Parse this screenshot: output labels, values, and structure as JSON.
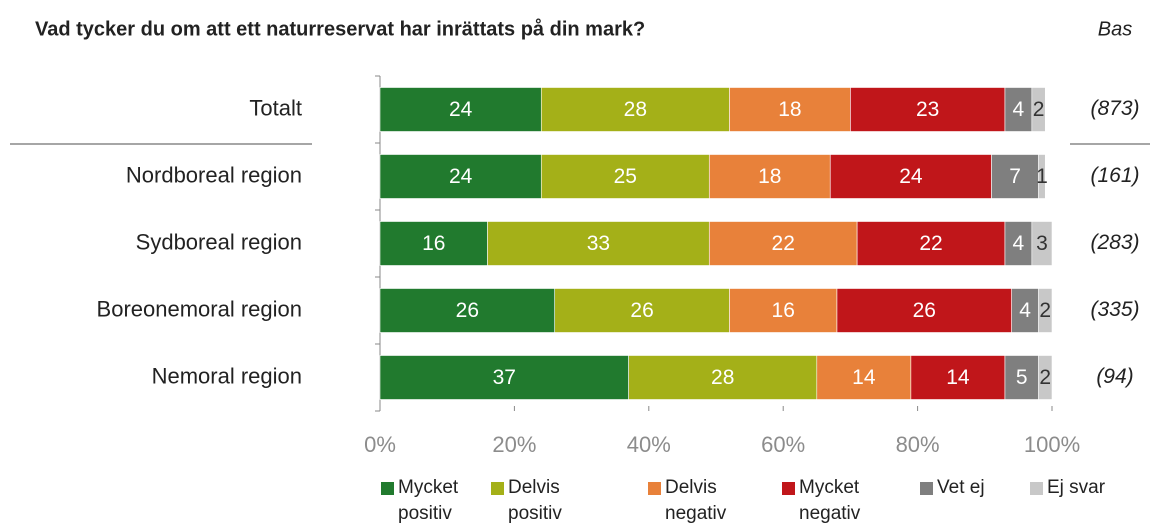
{
  "chart_data": {
    "type": "stacked_barh",
    "title": "Vad tycker du om att ett naturreservat har inrättats på din mark?",
    "base_header": "Bas",
    "categories": [
      "Totalt",
      "Nordboreal region",
      "Sydboreal region",
      "Boreonemoral region",
      "Nemoral region"
    ],
    "bases": [
      "(873)",
      "(161)",
      "(283)",
      "(335)",
      "(94)"
    ],
    "series": [
      {
        "name": "Mycket positiv",
        "color": "#217a2e",
        "values": [
          24,
          24,
          16,
          26,
          37
        ]
      },
      {
        "name": "Delvis positiv",
        "color": "#a4b018",
        "values": [
          28,
          25,
          33,
          26,
          28
        ]
      },
      {
        "name": "Delvis negativ",
        "color": "#e8813a",
        "values": [
          18,
          18,
          22,
          16,
          14
        ]
      },
      {
        "name": "Mycket negativ",
        "color": "#c0161a",
        "values": [
          23,
          24,
          22,
          26,
          14
        ]
      },
      {
        "name": "Vet ej",
        "color": "#7f7f7f",
        "values": [
          4,
          7,
          4,
          4,
          5
        ]
      },
      {
        "name": "Ej svar",
        "color": "#c8c8c8",
        "values": [
          2,
          1,
          3,
          2,
          2
        ]
      }
    ],
    "xlim": [
      0,
      100
    ],
    "xticks": [
      {
        "value": 0,
        "label": "0%"
      },
      {
        "value": 20,
        "label": "20%"
      },
      {
        "value": 40,
        "label": "40%"
      },
      {
        "value": 60,
        "label": "60%"
      },
      {
        "value": 80,
        "label": "80%"
      },
      {
        "value": 100,
        "label": "100%"
      }
    ]
  }
}
